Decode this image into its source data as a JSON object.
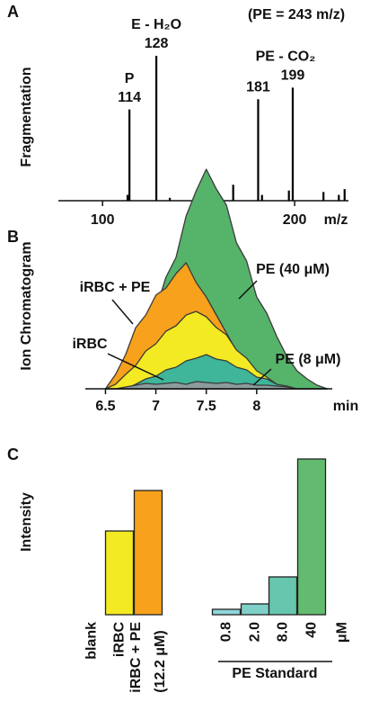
{
  "chart_data": [
    {
      "type": "stem",
      "panel": "A",
      "note": "(PE = 243 m/z)",
      "ylabel": "Fragmentation",
      "xlabel": "m/z",
      "x": [
        113,
        114,
        128,
        135,
        168,
        181,
        183,
        197,
        199,
        215,
        223,
        226
      ],
      "values": [
        4,
        63,
        100,
        2,
        11,
        70,
        4,
        7,
        78,
        6,
        4,
        8
      ],
      "x_labels": [
        null,
        "114",
        "128",
        null,
        null,
        "181",
        null,
        null,
        "199",
        null,
        null,
        null
      ],
      "peak_names": [
        null,
        "P",
        "E - H₂O",
        null,
        null,
        null,
        null,
        null,
        "PE - CO₂",
        null,
        null,
        null
      ],
      "color": "#000000",
      "xlim": [
        77,
        228
      ],
      "xticks": [
        100,
        150,
        200
      ],
      "ylim": [
        0,
        100
      ]
    },
    {
      "type": "area",
      "panel": "B",
      "ylabel": "Ion Chromatogram",
      "xlabel": "min",
      "x": [
        6.5,
        6.6,
        6.7,
        6.8,
        6.9,
        7.0,
        7.1,
        7.2,
        7.3,
        7.4,
        7.5,
        7.6,
        7.7,
        7.8,
        7.9,
        8.0,
        8.1,
        8.2,
        8.3,
        8.4,
        8.5,
        8.6,
        8.7
      ],
      "series": [
        {
          "name": "PE (40 μM)",
          "color": "#56b36a",
          "values": [
            0,
            5,
            22,
            38,
            64,
            88,
            124,
            146,
            192,
            220,
            244,
            222,
            204,
            162,
            142,
            102,
            84,
            58,
            36,
            20,
            11,
            4,
            0
          ]
        },
        {
          "name": "iRBC + PE",
          "color": "#f7a11c",
          "values": [
            0,
            16,
            38,
            68,
            82,
            104,
            112,
            128,
            140,
            118,
            102,
            82,
            62,
            42,
            32,
            16,
            9,
            3,
            0,
            0,
            0,
            0,
            0
          ]
        },
        {
          "name": "iRBC",
          "color": "#f3ea23",
          "values": [
            0,
            5,
            16,
            26,
            42,
            50,
            64,
            70,
            82,
            86,
            80,
            68,
            60,
            43,
            34,
            20,
            13,
            5,
            0,
            0,
            0,
            0,
            0
          ]
        },
        {
          "name": "PE (8 μM)",
          "color": "#3fb59a",
          "values": [
            0,
            0,
            0,
            5,
            11,
            14,
            21,
            24,
            31,
            34,
            38,
            33,
            31,
            24,
            21,
            13,
            11,
            5,
            3,
            0,
            0,
            0,
            0
          ]
        },
        {
          "color": "#8c9c9c",
          "values": [
            0,
            0,
            2,
            4,
            6,
            5,
            6,
            7,
            5,
            8,
            7,
            6,
            7,
            5,
            6,
            4,
            4,
            3,
            2,
            0,
            0,
            0,
            0
          ]
        }
      ],
      "xlim": [
        6.3,
        8.75
      ],
      "xticks": [
        6.5,
        7,
        7.5,
        8
      ],
      "ylim": [
        0,
        250
      ]
    },
    {
      "type": "bar",
      "panel": "C",
      "ylabel": "Intensity",
      "categories": [
        "blank",
        "iRBC",
        "iRBC + PE\n(12.2 μM)",
        "0.8",
        "2.0",
        "8.0",
        "40"
      ],
      "values": [
        0,
        93,
        138,
        6,
        12,
        42,
        173
      ],
      "colors": [
        "#ffffff",
        "#f3ea23",
        "#f7a11c",
        "#8fd6dc",
        "#7fd0c8",
        "#66c6ae",
        "#62bb6e"
      ],
      "unit_label": "μM",
      "group_label": "PE Standard",
      "ylim": [
        0,
        180
      ]
    }
  ]
}
